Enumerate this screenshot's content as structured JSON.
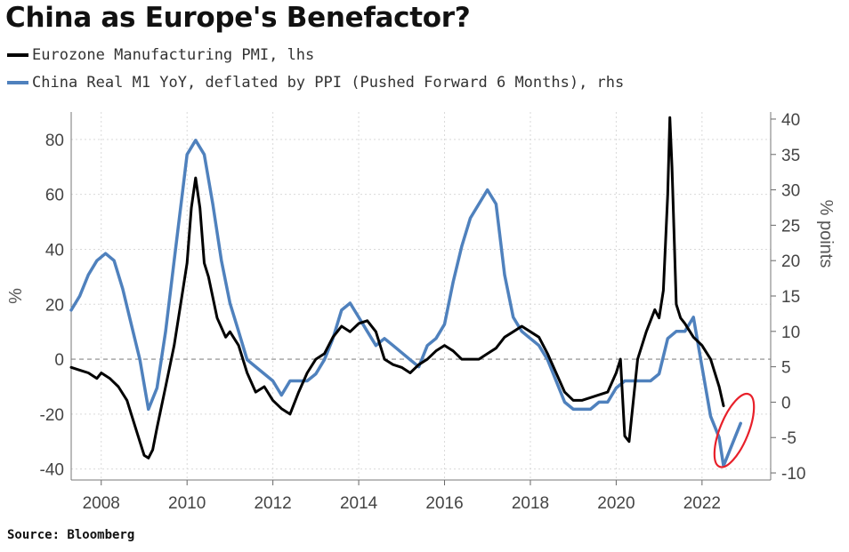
{
  "chart_data": {
    "type": "line",
    "title": "China as Europe's Benefactor?",
    "ylabel": "%",
    "y2label": "% points",
    "ylim": [
      -44,
      90
    ],
    "y2lim": [
      -11,
      41
    ],
    "xlim": [
      2007.3,
      2023.6
    ],
    "xticks": [
      "2008",
      "2010",
      "2012",
      "2014",
      "2016",
      "2018",
      "2020",
      "2022"
    ],
    "yticks": [
      "-40",
      "-20",
      "0",
      "20",
      "40",
      "60",
      "80"
    ],
    "y2ticks": [
      "-10",
      "-5",
      "0",
      "5",
      "10",
      "15",
      "20",
      "25",
      "30",
      "35",
      "40"
    ],
    "source": "Source: Bloomberg",
    "series": [
      {
        "name": "Eurozone Manufacturing PMI, lhs",
        "axis": "left",
        "color": "#000000",
        "x": [
          2007.3,
          2007.5,
          2007.7,
          2007.9,
          2008.0,
          2008.2,
          2008.4,
          2008.6,
          2008.8,
          2009.0,
          2009.1,
          2009.2,
          2009.3,
          2009.5,
          2009.7,
          2009.9,
          2010.0,
          2010.1,
          2010.2,
          2010.3,
          2010.4,
          2010.5,
          2010.7,
          2010.9,
          2011.0,
          2011.2,
          2011.4,
          2011.6,
          2011.8,
          2012.0,
          2012.2,
          2012.4,
          2012.6,
          2012.8,
          2013.0,
          2013.2,
          2013.4,
          2013.6,
          2013.8,
          2014.0,
          2014.2,
          2014.4,
          2014.6,
          2014.8,
          2015.0,
          2015.2,
          2015.4,
          2015.6,
          2015.8,
          2016.0,
          2016.2,
          2016.4,
          2016.6,
          2016.8,
          2017.0,
          2017.2,
          2017.4,
          2017.6,
          2017.8,
          2018.0,
          2018.2,
          2018.4,
          2018.6,
          2018.8,
          2019.0,
          2019.2,
          2019.4,
          2019.6,
          2019.8,
          2020.0,
          2020.1,
          2020.2,
          2020.3,
          2020.5,
          2020.7,
          2020.9,
          2021.0,
          2021.1,
          2021.2,
          2021.25,
          2021.3,
          2021.4,
          2021.5,
          2021.6,
          2021.8,
          2022.0,
          2022.2,
          2022.4,
          2022.5
        ],
        "values": [
          -3,
          -4,
          -5,
          -7,
          -5,
          -7,
          -10,
          -15,
          -25,
          -35,
          -36,
          -33,
          -25,
          -10,
          5,
          25,
          35,
          55,
          66,
          55,
          35,
          30,
          15,
          8,
          10,
          5,
          -5,
          -12,
          -10,
          -15,
          -18,
          -20,
          -12,
          -5,
          0,
          2,
          8,
          12,
          10,
          13,
          14,
          10,
          0,
          -2,
          -3,
          -5,
          -2,
          0,
          3,
          5,
          3,
          0,
          0,
          0,
          2,
          4,
          8,
          10,
          12,
          10,
          8,
          2,
          -5,
          -12,
          -15,
          -15,
          -14,
          -13,
          -12,
          -5,
          0,
          -28,
          -30,
          0,
          10,
          18,
          15,
          25,
          60,
          88,
          70,
          20,
          15,
          13,
          8,
          5,
          0,
          -10,
          -17
        ]
      },
      {
        "name": "China Real M1 YoY, deflated by PPI (Pushed Forward 6 Months), rhs",
        "axis": "right",
        "color": "#4f81bd",
        "x": [
          2007.3,
          2007.5,
          2007.7,
          2007.9,
          2008.1,
          2008.3,
          2008.5,
          2008.7,
          2008.9,
          2009.1,
          2009.3,
          2009.5,
          2009.7,
          2009.9,
          2010.0,
          2010.2,
          2010.4,
          2010.6,
          2010.8,
          2011.0,
          2011.2,
          2011.4,
          2011.6,
          2011.8,
          2012.0,
          2012.2,
          2012.4,
          2012.6,
          2012.8,
          2013.0,
          2013.2,
          2013.4,
          2013.6,
          2013.8,
          2014.0,
          2014.2,
          2014.4,
          2014.6,
          2014.8,
          2015.0,
          2015.2,
          2015.4,
          2015.6,
          2015.8,
          2016.0,
          2016.2,
          2016.4,
          2016.6,
          2016.8,
          2017.0,
          2017.2,
          2017.4,
          2017.6,
          2017.8,
          2018.0,
          2018.2,
          2018.4,
          2018.6,
          2018.8,
          2019.0,
          2019.2,
          2019.4,
          2019.6,
          2019.8,
          2020.0,
          2020.2,
          2020.4,
          2020.6,
          2020.8,
          2021.0,
          2021.2,
          2021.4,
          2021.6,
          2021.8,
          2022.0,
          2022.2,
          2022.4,
          2022.5,
          2022.7,
          2022.9
        ],
        "values": [
          13,
          15,
          18,
          20,
          21,
          20,
          16,
          11,
          6,
          -1,
          2,
          10,
          20,
          30,
          35,
          37,
          35,
          28,
          20,
          14,
          10,
          6,
          5,
          4,
          3,
          1,
          3,
          3,
          3,
          4,
          6,
          9,
          13,
          14,
          12,
          10,
          8,
          9,
          8,
          7,
          6,
          5,
          8,
          9,
          11,
          17,
          22,
          26,
          28,
          30,
          28,
          18,
          12,
          10,
          9,
          8,
          6,
          3,
          0,
          -1,
          -1,
          -1,
          0,
          0,
          2,
          3,
          3,
          3,
          3,
          4,
          9,
          10,
          10,
          12,
          5,
          -2,
          -5,
          -9,
          -6,
          -3
        ]
      }
    ],
    "annotations": [
      {
        "type": "ellipse",
        "color": "#e8202a",
        "x": 2022.75,
        "y2": -4,
        "label": ""
      }
    ]
  }
}
